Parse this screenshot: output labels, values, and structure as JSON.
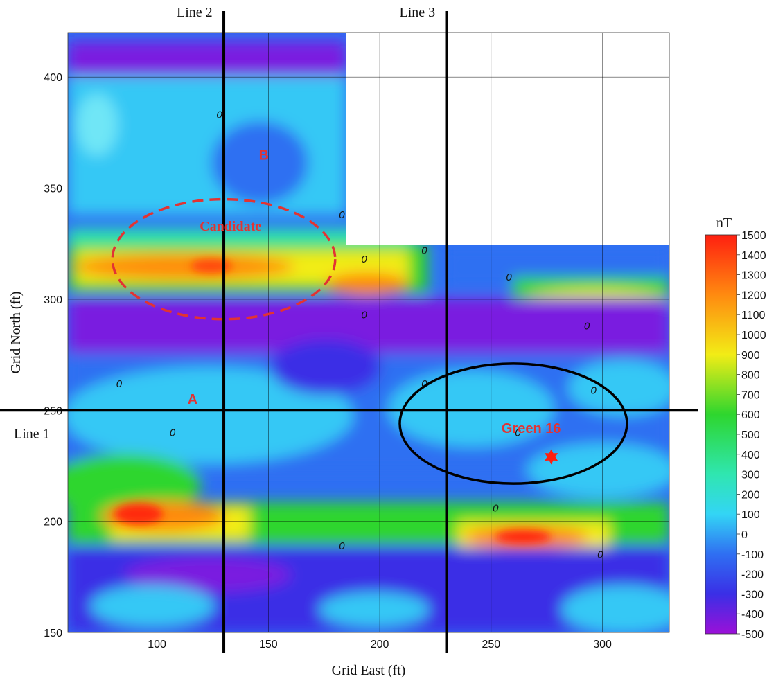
{
  "chart_data": {
    "type": "heatmap",
    "title": "",
    "xlabel": "Grid East (ft)",
    "ylabel": "Grid North (ft)",
    "xlim": [
      60,
      330
    ],
    "ylim": [
      150,
      420
    ],
    "x_ticks": [
      100,
      150,
      200,
      250,
      300
    ],
    "y_ticks": [
      150,
      200,
      250,
      300,
      350,
      400
    ],
    "grid": true,
    "no_data_region": {
      "x": [
        185,
        330
      ],
      "y": [
        325,
        420
      ]
    },
    "colorbar": {
      "unit": "nT",
      "min": -500,
      "max": 1500,
      "ticks": [
        1500,
        1400,
        1300,
        1200,
        1100,
        1000,
        900,
        800,
        700,
        600,
        500,
        400,
        300,
        200,
        100,
        0,
        -100,
        -200,
        -300,
        -400,
        -500
      ],
      "stops": [
        {
          "v": -500,
          "c": "#9b10d8"
        },
        {
          "v": -300,
          "c": "#3a2fe6"
        },
        {
          "v": -100,
          "c": "#2f6ff2"
        },
        {
          "v": 100,
          "c": "#33d5f5"
        },
        {
          "v": 300,
          "c": "#2fe6b0"
        },
        {
          "v": 600,
          "c": "#2ed62e"
        },
        {
          "v": 900,
          "c": "#f2ec16"
        },
        {
          "v": 1200,
          "c": "#ff8a10"
        },
        {
          "v": 1500,
          "c": "#ff1f10"
        }
      ]
    },
    "survey_lines": [
      {
        "label": "Line 1",
        "orientation": "horizontal",
        "value": 250
      },
      {
        "label": "Line 2",
        "orientation": "vertical",
        "value": 130
      },
      {
        "label": "Line 3",
        "orientation": "vertical",
        "value": 230
      }
    ],
    "annotations": [
      {
        "text": "A",
        "x": 116,
        "y": 255
      },
      {
        "text": "B",
        "x": 148,
        "y": 365
      },
      {
        "text": "Candidate",
        "x": 133,
        "y": 333
      },
      {
        "text": "Green 16",
        "x": 268,
        "y": 242
      }
    ],
    "zero_contour_labels": [
      {
        "text": "0",
        "x": 128,
        "y": 383
      },
      {
        "text": "0",
        "x": 183,
        "y": 338
      },
      {
        "text": "0",
        "x": 193,
        "y": 318
      },
      {
        "text": "0",
        "x": 220,
        "y": 322
      },
      {
        "text": "0",
        "x": 258,
        "y": 310
      },
      {
        "text": "0",
        "x": 193,
        "y": 293
      },
      {
        "text": "0",
        "x": 293,
        "y": 288
      },
      {
        "text": "0",
        "x": 83,
        "y": 262
      },
      {
        "text": "0",
        "x": 220,
        "y": 262
      },
      {
        "text": "0",
        "x": 296,
        "y": 259
      },
      {
        "text": "0",
        "x": 107,
        "y": 240
      },
      {
        "text": "0",
        "x": 262,
        "y": 240
      },
      {
        "text": "0",
        "x": 252,
        "y": 206
      },
      {
        "text": "0",
        "x": 183,
        "y": 189
      },
      {
        "text": "0",
        "x": 299,
        "y": 185
      }
    ],
    "regions": [
      {
        "name": "Candidate",
        "style": "dashed",
        "color": "#e23333",
        "cx": 130,
        "cy": 318,
        "rx": 50,
        "ry": 27
      },
      {
        "name": "Green 16",
        "style": "solid",
        "color": "#000000",
        "cx": 260,
        "cy": 244,
        "rx": 51,
        "ry": 27
      }
    ],
    "marker": {
      "shape": "star",
      "color": "#ff1f10",
      "x": 277,
      "y": 229
    },
    "anomalies": [
      {
        "x": 92,
        "y": 312,
        "value": 1150
      },
      {
        "x": 115,
        "y": 312,
        "value": 1200
      },
      {
        "x": 140,
        "y": 310,
        "value": 1150
      },
      {
        "x": 185,
        "y": 305,
        "value": 1000
      },
      {
        "x": 92,
        "y": 203,
        "value": 1350
      },
      {
        "x": 115,
        "y": 201,
        "value": 1100
      },
      {
        "x": 262,
        "y": 192,
        "value": 1300
      },
      {
        "x": 300,
        "y": 294,
        "value": 900
      },
      {
        "x": 150,
        "y": 410,
        "value": -450
      },
      {
        "x": 120,
        "y": 295,
        "value": -400
      },
      {
        "x": 150,
        "y": 170,
        "value": -400
      },
      {
        "x": 148,
        "y": 365,
        "value": -300
      }
    ]
  }
}
